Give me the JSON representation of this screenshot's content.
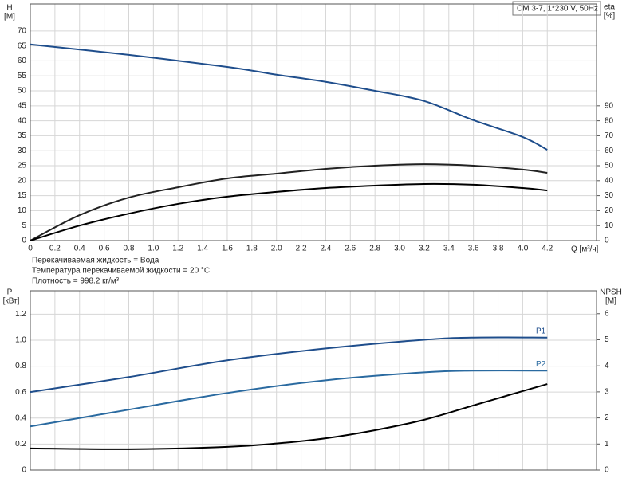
{
  "chart_data": [
    {
      "type": "line",
      "model": "CM 3-7, 1*230 V, 50Hz",
      "ylabel": [
        "H",
        "[M]"
      ],
      "y2label": [
        "eta",
        "[%]"
      ],
      "xlabel": "Q [м³/ч]",
      "xlim": [
        0,
        4.6
      ],
      "xticks": [
        0,
        0.2,
        0.4,
        0.6,
        0.8,
        {
          "value": 1,
          "label": "1.0"
        },
        1.2,
        1.4,
        1.6,
        1.8,
        {
          "value": 2,
          "label": "2.0"
        },
        2.2,
        2.4,
        2.6,
        2.8,
        {
          "value": 3,
          "label": "3.0"
        },
        3.2,
        3.4,
        3.6,
        3.8,
        {
          "value": 4,
          "label": "4.0"
        },
        4.2
      ],
      "ylim": [
        0,
        79
      ],
      "yticks": [
        0,
        5,
        10,
        15,
        20,
        25,
        30,
        35,
        40,
        45,
        50,
        55,
        60,
        65,
        70
      ],
      "y2lim": [
        0,
        158
      ],
      "y2ticks": [
        0,
        10,
        20,
        30,
        40,
        50,
        60,
        70,
        80,
        90
      ],
      "grid": true,
      "series": [
        {
          "color": "#1f4e8c",
          "x": [
            0,
            0.8,
            1.6,
            2.0,
            2.4,
            2.8,
            3.2,
            3.6,
            4.0,
            4.2
          ],
          "values": [
            65.5,
            62.0,
            58.0,
            55.4,
            53.0,
            50.0,
            46.6,
            40.2,
            34.6,
            30.3
          ]
        },
        {
          "color": "#222222",
          "axis": "y2",
          "x": [
            0,
            0.4,
            0.8,
            1.2,
            1.6,
            2.0,
            2.4,
            2.8,
            3.2,
            3.6,
            4.0,
            4.2
          ],
          "values": [
            0,
            17,
            28.7,
            35.6,
            41.5,
            44.7,
            47.9,
            50,
            51,
            50,
            47.4,
            45.2
          ]
        },
        {
          "color": "#000000",
          "axis": "y2",
          "x": [
            0,
            0.4,
            0.8,
            1.2,
            1.6,
            2.0,
            2.4,
            2.8,
            3.2,
            3.6,
            4.0,
            4.2
          ],
          "values": [
            0,
            10,
            18,
            24.5,
            29.3,
            32.5,
            35.1,
            36.7,
            37.8,
            37.3,
            35.1,
            33.5
          ]
        }
      ],
      "notes": [
        "Перекачиваемая жидкость = Вода",
        "Температура перекачиваемой жидкости = 20 °C",
        "Плотность = 998.2 кг/м³"
      ]
    },
    {
      "type": "line",
      "ylabel": [
        "P",
        "[кВт]"
      ],
      "y2label": [
        "NPSH",
        "[M]"
      ],
      "xlim": [
        0,
        4.6
      ],
      "ylim": [
        0,
        1.38
      ],
      "yticks": [
        0,
        0.2,
        0.4,
        0.6,
        0.8,
        {
          "value": 1,
          "label": "1.0"
        },
        1.2
      ],
      "y2lim": [
        0,
        6.88
      ],
      "y2ticks": [
        0,
        1,
        2,
        3,
        4,
        5,
        6
      ],
      "grid": true,
      "series": [
        {
          "name": "P1",
          "color": "#1f4e8c",
          "x": [
            0,
            0.8,
            1.6,
            2.4,
            3.2,
            3.6,
            4.2
          ],
          "values": [
            0.6,
            0.716,
            0.845,
            0.936,
            1.003,
            1.02,
            1.02
          ]
        },
        {
          "name": "P2",
          "color": "#2a6aa0",
          "x": [
            0,
            0.8,
            1.6,
            2.4,
            3.2,
            3.6,
            4.2
          ],
          "values": [
            0.336,
            0.465,
            0.593,
            0.691,
            0.752,
            0.765,
            0.765
          ]
        },
        {
          "color": "#000000",
          "axis": "y2",
          "x": [
            0,
            0.8,
            1.6,
            2.0,
            2.4,
            2.8,
            3.2,
            3.6,
            4.0,
            4.2
          ],
          "values": [
            0.83,
            0.8,
            0.89,
            1.02,
            1.22,
            1.53,
            1.93,
            2.48,
            3.03,
            3.3
          ]
        }
      ]
    }
  ]
}
